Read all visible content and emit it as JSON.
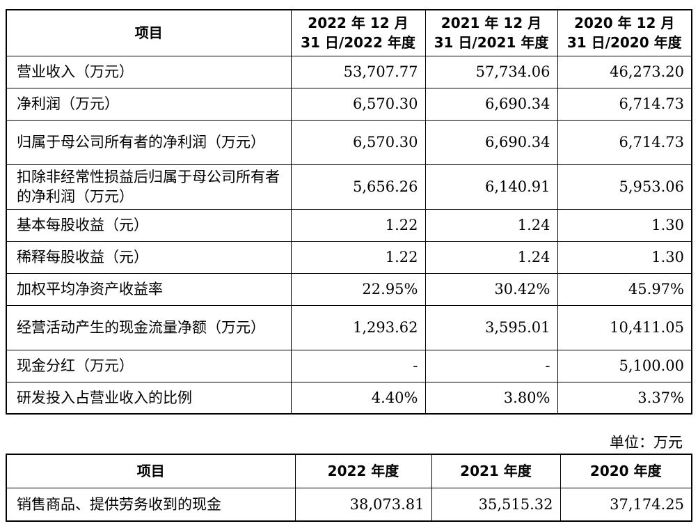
{
  "table1": {
    "headers": [
      "项目",
      "2022 年 12 月 31 日/2022 年度",
      "2021 年 12 月 31 日/2021 年度",
      "2020 年 12 月 31 日/2020 年度"
    ],
    "rows": [
      {
        "label": "营业收入（万元）",
        "v": [
          "53,707.77",
          "57,734.06",
          "46,273.20"
        ]
      },
      {
        "label": "净利润（万元）",
        "v": [
          "6,570.30",
          "6,690.34",
          "6,714.73"
        ]
      },
      {
        "label": "归属于母公司所有者的净利润（万元）",
        "v": [
          "6,570.30",
          "6,690.34",
          "6,714.73"
        ]
      },
      {
        "label": "扣除非经常性损益后归属于母公司所有者的净利润（万元）",
        "v": [
          "5,656.26",
          "6,140.91",
          "5,953.06"
        ]
      },
      {
        "label": "基本每股收益（元）",
        "v": [
          "1.22",
          "1.24",
          "1.30"
        ]
      },
      {
        "label": "稀释每股收益（元）",
        "v": [
          "1.22",
          "1.24",
          "1.30"
        ]
      },
      {
        "label": "加权平均净资产收益率",
        "v": [
          "22.95%",
          "30.42%",
          "45.97%"
        ]
      },
      {
        "label": "经营活动产生的现金流量净额（万元）",
        "v": [
          "1,293.62",
          "3,595.01",
          "10,411.05"
        ]
      },
      {
        "label": "现金分红（万元）",
        "v": [
          "-",
          "-",
          "5,100.00"
        ]
      },
      {
        "label": "研发投入占营业收入的比例",
        "v": [
          "4.40%",
          "3.80%",
          "3.37%"
        ]
      }
    ]
  },
  "unit_label": "单位：万元",
  "table2": {
    "headers": [
      "项目",
      "2022 年度",
      "2021 年度",
      "2020 年度"
    ],
    "rows": [
      {
        "label": "销售商品、提供劳务收到的现金",
        "v": [
          "38,073.81",
          "35,515.32",
          "37,174.25"
        ]
      }
    ]
  }
}
